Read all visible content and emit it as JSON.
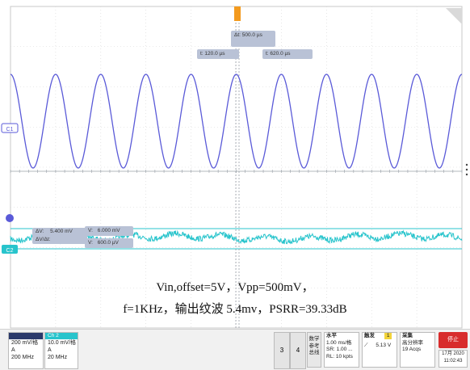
{
  "colors": {
    "ch1": "#5a5ad8",
    "ch2": "#28c4cc",
    "grid": "#c8c8c8",
    "tag_bg": "#b9c2d6",
    "stop_button": "#d82c2c",
    "trigger": "#f39a1e"
  },
  "cursors": {
    "delta_t": "Δt:  500.0 µs",
    "t1": "t:  120.0 µs",
    "t2": "t:  620.0 µs"
  },
  "ch1_marker": "C1",
  "ch2_marker": "C2",
  "readout": {
    "delta_v": "ΔV:",
    "delta_v_value": "5.400 mV",
    "v1_label": "V:",
    "v1_value": "6.000 mV",
    "dv_dt": "ΔV/Δt:",
    "v2_label": "V:",
    "v2_value": "600.0 µV"
  },
  "caption": {
    "line1": "Vin,offset=5V，Vpp=500mV，",
    "line2": "f=1KHz，输出纹波  5.4mv，PSRR=39.33dB"
  },
  "bottom_bar": {
    "ch1": {
      "header": "",
      "line1": "200 mV/格",
      "line2": "A",
      "line3": "200 MHz"
    },
    "ch2": {
      "header": "Ch 2",
      "line1": "10.0 mV/格",
      "line2": "A",
      "line3": "20 MHz"
    },
    "btn3": "3",
    "btn4": "4",
    "math": {
      "line1": "数学",
      "line2": "参考",
      "line3": "总线"
    },
    "horizontal": {
      "title": "水平",
      "line1": "1.00 ms/格",
      "line2": "SR: 1.00 ...",
      "line3": "RL: 10 kpts"
    },
    "trigger": {
      "title": "触发",
      "badge": "1",
      "level": "5.13 V"
    },
    "acquire": {
      "title": "采集",
      "line1": "高分辨率",
      "line2": "19 Acqs"
    },
    "stop": "停止",
    "date": "17月 2020",
    "time": "11:02:43"
  },
  "chart_data": {
    "type": "line",
    "series": [
      {
        "values_note": "",
        "frequency_hz": 1000,
        "amplitude_mv": 500,
        "periods_visible": 10
      },
      {
        "ripple_mv": 5.4
      }
    ]
  }
}
